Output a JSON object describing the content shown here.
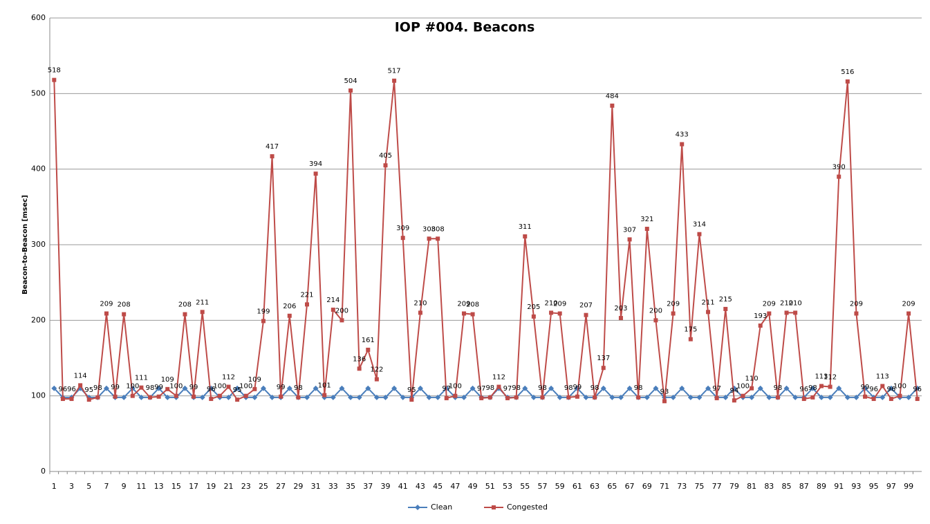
{
  "chart_data": {
    "type": "line",
    "title": "IOP #004. Beacons",
    "y_label": "Beacon-to-Beacon  [msec]",
    "categories": [
      1,
      null,
      3,
      null,
      5,
      null,
      7,
      null,
      9,
      null,
      11,
      null,
      13,
      null,
      15,
      null,
      17,
      null,
      19,
      null,
      21,
      null,
      23,
      null,
      25,
      null,
      27,
      null,
      29,
      null,
      31,
      null,
      33,
      null,
      35,
      null,
      37,
      null,
      39,
      null,
      41,
      null,
      43,
      null,
      45,
      null,
      47,
      null,
      49,
      null,
      51,
      null,
      53,
      null,
      55,
      null,
      57,
      null,
      59,
      null,
      61,
      null,
      63,
      null,
      65,
      null,
      67,
      null,
      69,
      null,
      71,
      null,
      73,
      null,
      75,
      null,
      77,
      null,
      79,
      null,
      81,
      null,
      83,
      null,
      85,
      null,
      87,
      null,
      89,
      null,
      91,
      null,
      93,
      null,
      95,
      null,
      97,
      null,
      99,
      null
    ],
    "series": [
      {
        "name": "Clean",
        "color": "#4a7ebb",
        "marker": "diamond",
        "values": [
          110,
          98,
          98,
          110,
          98,
          98,
          110,
          98,
          98,
          110,
          98,
          98,
          110,
          98,
          98,
          110,
          98,
          98,
          110,
          98,
          98,
          110,
          98,
          98,
          110,
          98,
          98,
          110,
          98,
          98,
          110,
          98,
          98,
          110,
          98,
          98,
          110,
          98,
          98,
          110,
          98,
          98,
          110,
          98,
          98,
          110,
          98,
          98,
          110,
          98,
          98,
          110,
          98,
          98,
          110,
          98,
          98,
          110,
          98,
          98,
          110,
          98,
          98,
          110,
          98,
          98,
          110,
          98,
          98,
          110,
          98,
          98,
          110,
          98,
          98,
          110,
          98,
          98,
          110,
          98,
          98,
          110,
          98,
          98,
          110,
          98,
          98,
          110,
          98,
          98,
          110,
          98,
          98,
          110,
          98,
          98,
          110,
          98,
          98,
          110
        ]
      },
      {
        "name": "Congested",
        "color": "#be4b48",
        "marker": "square",
        "labels": true,
        "values": [
          518,
          96,
          96,
          114,
          95,
          98,
          209,
          99,
          208,
          100,
          111,
          98,
          99,
          109,
          100,
          208,
          99,
          211,
          96,
          100,
          112,
          95,
          100,
          109,
          199,
          417,
          99,
          206,
          98,
          221,
          394,
          101,
          214,
          200,
          504,
          136,
          161,
          122,
          405,
          517,
          309,
          95,
          210,
          308,
          308,
          97,
          100,
          209,
          208,
          97,
          98,
          112,
          97,
          98,
          311,
          205,
          98,
          210,
          209,
          98,
          99,
          207,
          98,
          137,
          484,
          203,
          307,
          98,
          321,
          200,
          93,
          209,
          433,
          175,
          314,
          211,
          97,
          215,
          94,
          100,
          110,
          193,
          209,
          98,
          210,
          210,
          96,
          98,
          113,
          112,
          390,
          516,
          209,
          99,
          96,
          113,
          96,
          100,
          209,
          96
        ]
      }
    ],
    "ylim": [
      0,
      600
    ],
    "yticks": [
      0,
      100,
      200,
      300,
      400,
      500,
      600
    ],
    "grid": true,
    "legend": "bottom"
  }
}
